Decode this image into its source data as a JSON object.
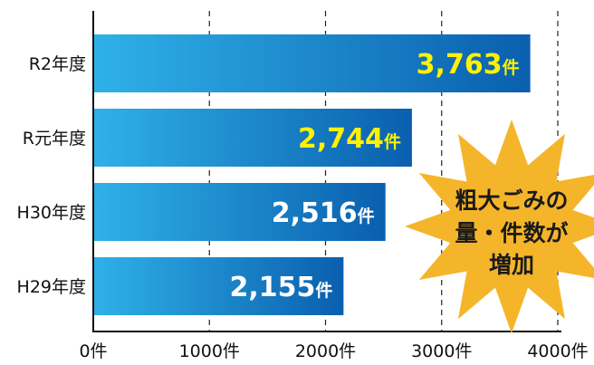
{
  "chart_data": {
    "type": "bar",
    "orientation": "horizontal",
    "categories": [
      "R2年度",
      "R元年度",
      "H30年度",
      "H29年度"
    ],
    "values": [
      3763,
      2744,
      2516,
      2155
    ],
    "value_labels": [
      "3,763",
      "2,744",
      "2,516",
      "2,155"
    ],
    "unit": "件",
    "xlim": [
      0,
      4000
    ],
    "xticks": [
      "0件",
      "1000件",
      "2000件",
      "3000件",
      "4000件"
    ],
    "xtick_values": [
      0,
      1000,
      2000,
      3000,
      4000
    ],
    "grid": "vertical dashed",
    "annotation": {
      "lines": [
        "粗大ごみの",
        "量・件数が",
        "増加"
      ],
      "color": "#f5b52a"
    },
    "colors": {
      "bar_light": "#2fb1e8",
      "bar_dark": "#0a5fae",
      "highlight_label": "#fff200",
      "normal_label": "#ffffff"
    },
    "highlight_labels": [
      true,
      true,
      false,
      false
    ]
  }
}
